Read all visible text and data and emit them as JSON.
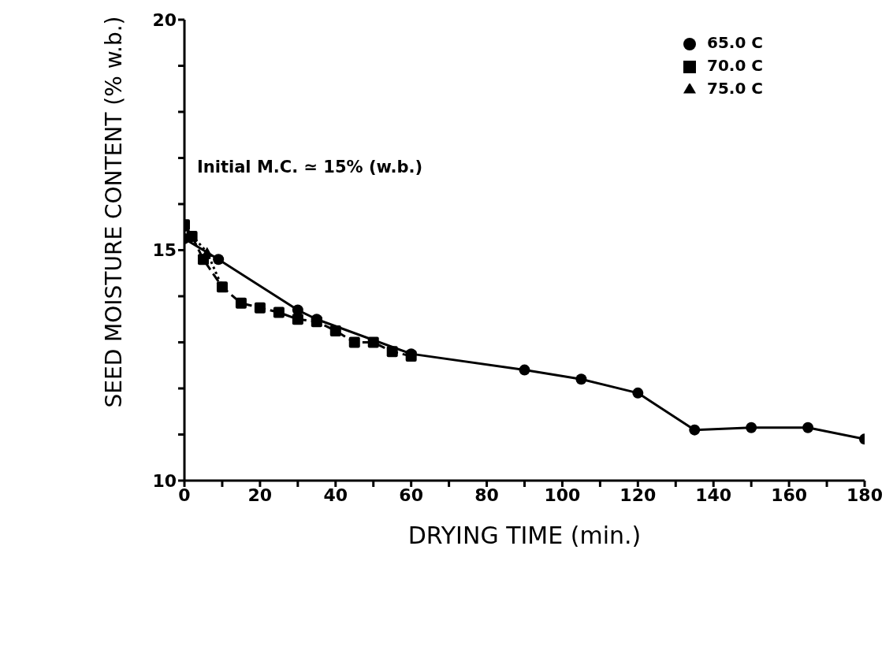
{
  "chart_data": {
    "type": "line",
    "xlabel": "DRYING TIME (min.)",
    "ylabel": "SEED MOISTURE CONTENT (% w.b.)",
    "xlim": [
      0,
      180
    ],
    "ylim": [
      10,
      20
    ],
    "xticks": [
      0,
      {
        "value": 10,
        "label": null
      },
      20,
      {
        "value": 30,
        "label": null
      },
      40,
      {
        "value": 50,
        "label": null
      },
      60,
      {
        "value": 70,
        "label": null
      },
      80,
      {
        "value": 90,
        "label": null
      },
      100,
      {
        "value": 110,
        "label": null
      },
      120,
      {
        "value": 130,
        "label": null
      },
      140,
      {
        "value": 150,
        "label": null
      },
      160,
      {
        "value": 170,
        "label": null
      },
      180
    ],
    "yticks": [
      10,
      {
        "value": 11,
        "label": null
      },
      {
        "value": 12,
        "label": null
      },
      {
        "value": 13,
        "label": null
      },
      {
        "value": 14,
        "label": null
      },
      15,
      {
        "value": 16,
        "label": null
      },
      {
        "value": 17,
        "label": null
      },
      {
        "value": 18,
        "label": null
      },
      {
        "value": 19,
        "label": null
      },
      20
    ],
    "legend": "top right",
    "grid": false,
    "annotations": [
      "Initial M.C. ≃ 15% (w.b.)"
    ],
    "series": [
      {
        "name": "65.0 C",
        "color": "#000000",
        "marker": "circle",
        "line_style": "solid",
        "x": [
          0,
          9,
          30,
          35,
          60,
          90,
          105,
          120,
          135,
          150,
          165,
          180
        ],
        "values": [
          15.25,
          14.8,
          13.7,
          13.5,
          12.75,
          12.4,
          12.2,
          11.9,
          11.1,
          11.15,
          11.15,
          10.9
        ]
      },
      {
        "name": "70.0 C",
        "color": "#000000",
        "marker": "square",
        "line_style": "dashed",
        "x": [
          0,
          2,
          5,
          10,
          15,
          20,
          25,
          30,
          35,
          40,
          45,
          50,
          55,
          60
        ],
        "values": [
          15.55,
          15.3,
          14.8,
          14.2,
          13.85,
          13.75,
          13.65,
          13.5,
          13.45,
          13.25,
          13,
          13,
          12.8,
          12.7
        ]
      },
      {
        "name": "75.0 C",
        "color": "#000000",
        "marker": "triangle",
        "line_style": "dotted",
        "x": [
          0,
          6,
          10
        ],
        "values": [
          15.5,
          14.95,
          14.2
        ]
      }
    ]
  }
}
